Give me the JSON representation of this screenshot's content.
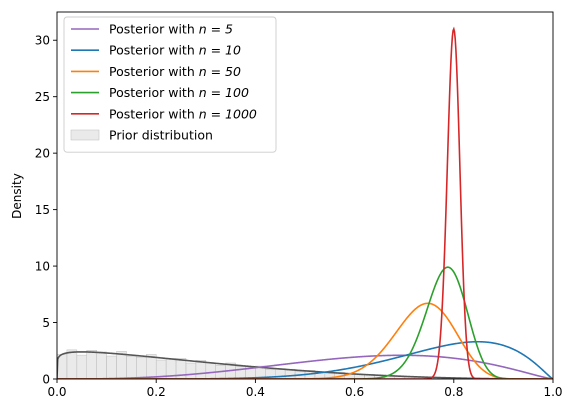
{
  "chart_data": {
    "type": "line",
    "title": "",
    "xlabel": "",
    "ylabel": "Density",
    "xlim": [
      0.0,
      1.0
    ],
    "ylim": [
      0,
      32.5
    ],
    "x_ticks": [
      "0.0",
      "0.2",
      "0.4",
      "0.6",
      "0.8",
      "1.0"
    ],
    "x_tick_values": [
      0.0,
      0.2,
      0.4,
      0.6,
      0.8,
      1.0
    ],
    "y_ticks": [
      "0",
      "5",
      "10",
      "15",
      "20",
      "25",
      "30"
    ],
    "y_tick_values": [
      0,
      5,
      10,
      15,
      20,
      25,
      30
    ],
    "grid": false,
    "legend_position": "top-left",
    "series": [
      {
        "name": "Posterior with n = 5",
        "name_prefix": "Posterior with ",
        "name_math": "n = 5",
        "color": "#9467bd",
        "dist": "beta",
        "alpha": 3.91,
        "beta": 2.28,
        "peak": 2.1
      },
      {
        "name": "Posterior with n = 10",
        "name_prefix": "Posterior with ",
        "name_math": "n = 10",
        "color": "#1f77b4",
        "dist": "beta",
        "alpha": 7.7,
        "beta": 2.2,
        "peak": 3.3
      },
      {
        "name": "Posterior with n = 50",
        "name_prefix": "Posterior with ",
        "name_math": "n = 50",
        "color": "#ff7f0e",
        "dist": "beta",
        "alpha": 38,
        "beta": 13.5,
        "peak": 6.7
      },
      {
        "name": "Posterior with n = 100",
        "name_prefix": "Posterior with ",
        "name_math": "n = 100",
        "color": "#2ca02c",
        "dist": "beta",
        "alpha": 79,
        "beta": 22,
        "peak": 9.9
      },
      {
        "name": "Posterior with n = 1000",
        "name_prefix": "Posterior with ",
        "name_math": "n = 1000",
        "color": "#d62728",
        "dist": "beta",
        "alpha": 800,
        "beta": 201,
        "peak": 31.0
      }
    ],
    "prior": {
      "name": "Prior distribution",
      "fill_color": "#d9d9d9",
      "line_color": "#555555",
      "dist": "beta",
      "alpha": 1.12,
      "beta": 3.3,
      "peak": 2.4
    }
  }
}
